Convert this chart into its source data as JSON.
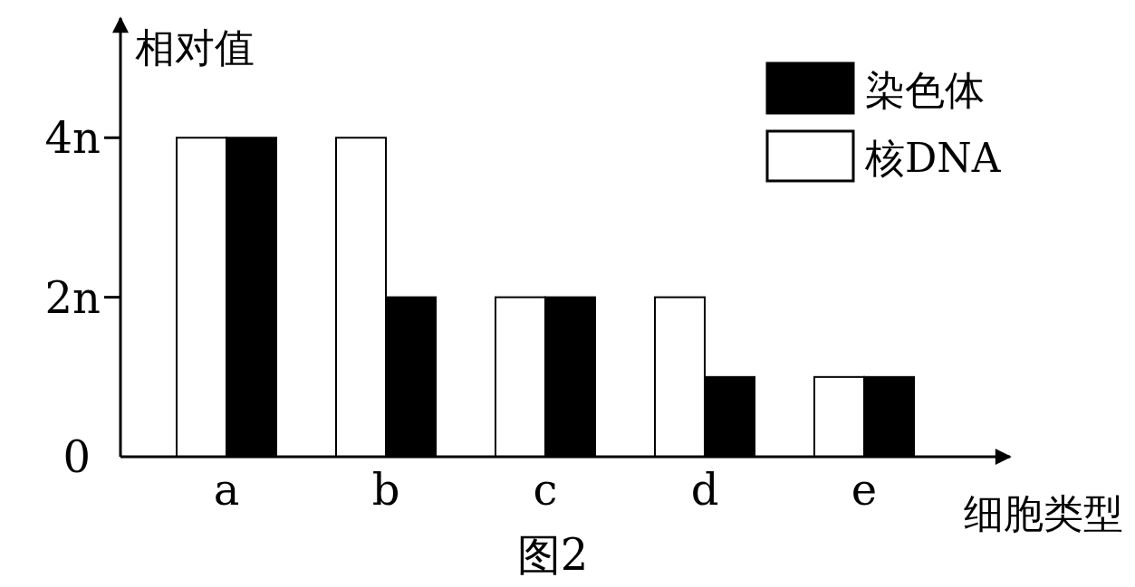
{
  "chart_data": {
    "type": "bar",
    "ylabel": "相对值",
    "xlabel": "细胞类型",
    "categories": [
      "a",
      "b",
      "c",
      "d",
      "e"
    ],
    "series": [
      {
        "name": "核DNA",
        "color": "#ffffff",
        "values": [
          4,
          4,
          2,
          2,
          1
        ]
      },
      {
        "name": "染色体",
        "color": "#000000",
        "values": [
          4,
          2,
          2,
          1,
          1
        ]
      }
    ],
    "ylim": [
      0,
      5.5
    ],
    "yticks": [
      0,
      {
        "value": 2,
        "label": "2n"
      },
      {
        "value": 4,
        "label": "4n"
      }
    ],
    "grid": false,
    "legend": "top right",
    "annotations": [
      "图2"
    ]
  }
}
